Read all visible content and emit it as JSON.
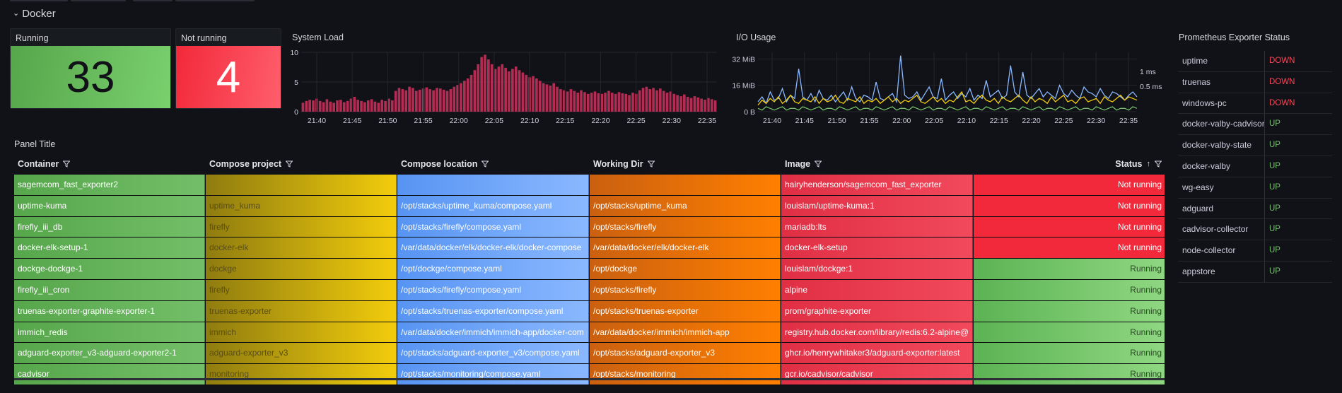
{
  "section": {
    "title": "Docker"
  },
  "running": {
    "title": "Running",
    "value": "33"
  },
  "not_running": {
    "title": "Not running",
    "value": "4"
  },
  "system_load": {
    "title": "System Load"
  },
  "io_usage": {
    "title": "I/O Usage"
  },
  "exporter_status": {
    "title": "Prometheus Exporter Status",
    "rows": [
      {
        "name": "uptime",
        "status": "DOWN"
      },
      {
        "name": "truenas",
        "status": "DOWN"
      },
      {
        "name": "windows-pc",
        "status": "DOWN"
      },
      {
        "name": "docker-valby-cadvisor",
        "status": "UP"
      },
      {
        "name": "docker-valby-state",
        "status": "UP"
      },
      {
        "name": "docker-valby",
        "status": "UP"
      },
      {
        "name": "wg-easy",
        "status": "UP"
      },
      {
        "name": "adguard",
        "status": "UP"
      },
      {
        "name": "cadvisor-collector",
        "status": "UP"
      },
      {
        "name": "node-collector",
        "status": "UP"
      },
      {
        "name": "appstore",
        "status": "UP"
      }
    ]
  },
  "table": {
    "title": "Panel Title",
    "columns": [
      "Container",
      "Compose project",
      "Compose location",
      "Working Dir",
      "Image",
      "Status"
    ],
    "rows": [
      [
        "sagemcom_fast_exporter2",
        "",
        "",
        "",
        "hairyhenderson/sagemcom_fast_exporter",
        "Not running"
      ],
      [
        "uptime-kuma",
        "uptime_kuma",
        "/opt/stacks/uptime_kuma/compose.yaml",
        "/opt/stacks/uptime_kuma",
        "louislam/uptime-kuma:1",
        "Not running"
      ],
      [
        "firefly_iii_db",
        "firefly",
        "/opt/stacks/firefly/compose.yaml",
        "/opt/stacks/firefly",
        "mariadb:lts",
        "Not running"
      ],
      [
        "docker-elk-setup-1",
        "docker-elk",
        "/var/data/docker/elk/docker-elk/docker-compose",
        "/var/data/docker/elk/docker-elk",
        "docker-elk-setup",
        "Not running"
      ],
      [
        "dockge-dockge-1",
        "dockge",
        "/opt/dockge/compose.yaml",
        "/opt/dockge",
        "louislam/dockge:1",
        "Running"
      ],
      [
        "firefly_iii_cron",
        "firefly",
        "/opt/stacks/firefly/compose.yaml",
        "/opt/stacks/firefly",
        "alpine",
        "Running"
      ],
      [
        "truenas-exporter-graphite-exporter-1",
        "truenas-exporter",
        "/opt/stacks/truenas-exporter/compose.yaml",
        "/opt/stacks/truenas-exporter",
        "prom/graphite-exporter",
        "Running"
      ],
      [
        "immich_redis",
        "immich",
        "/var/data/docker/immich/immich-app/docker-com",
        "/var/data/docker/immich/immich-app",
        "registry.hub.docker.com/library/redis:6.2-alpine@",
        "Running"
      ],
      [
        "adguard-exporter_v3-adguard-exporter2-1",
        "adguard-exporter_v3",
        "/opt/stacks/adguard-exporter_v3/compose.yaml",
        "/opt/stacks/adguard-exporter_v3",
        "ghcr.io/henrywhitaker3/adguard-exporter:latest",
        "Running"
      ],
      [
        "cadvisor",
        "monitoring",
        "/opt/stacks/monitoring/compose.yaml",
        "/opt/stacks/monitoring",
        "gcr.io/cadvisor/cadvisor",
        "Running"
      ]
    ]
  },
  "colors": {
    "up": "#73bf69",
    "down": "#f2495c",
    "bars": "#c4305a"
  },
  "chart_data": [
    {
      "type": "bar",
      "title": "System Load",
      "ylim": [
        0,
        10
      ],
      "yticks": [
        "0",
        "5",
        "10"
      ],
      "xticks": [
        "21:40",
        "21:45",
        "21:50",
        "21:55",
        "22:00",
        "22:05",
        "22:10",
        "22:15",
        "22:20",
        "22:25",
        "22:30",
        "22:35"
      ],
      "values": [
        1.5,
        1.8,
        2.0,
        1.9,
        2.2,
        1.8,
        1.6,
        2.1,
        1.7,
        1.5,
        1.9,
        2.0,
        1.6,
        1.8,
        2.2,
        2.5,
        2.0,
        1.8,
        1.6,
        1.9,
        2.1,
        1.7,
        1.5,
        2.0,
        1.8,
        2.2,
        1.9,
        3.5,
        4.0,
        3.8,
        3.6,
        4.2,
        4.0,
        3.5,
        3.7,
        3.9,
        4.1,
        3.8,
        3.6,
        4.0,
        3.9,
        3.7,
        3.5,
        3.8,
        4.2,
        4.5,
        4.8,
        5.2,
        5.6,
        6.2,
        7.0,
        8.0,
        9.2,
        9.6,
        8.8,
        8.0,
        7.2,
        7.6,
        8.0,
        7.4,
        6.8,
        7.2,
        7.6,
        7.0,
        6.6,
        6.2,
        5.8,
        6.0,
        5.6,
        5.2,
        4.8,
        4.6,
        4.4,
        4.8,
        4.2,
        3.8,
        3.6,
        3.4,
        3.8,
        3.5,
        3.2,
        3.6,
        3.3,
        3.0,
        3.2,
        3.4,
        3.1,
        3.0,
        3.2,
        3.5,
        3.2,
        3.0,
        3.3,
        3.1,
        3.0,
        2.8,
        3.2,
        3.0,
        3.6,
        4.0,
        4.2,
        3.8,
        4.0,
        3.6,
        3.9,
        3.5,
        3.2,
        3.4,
        3.0,
        2.8,
        2.6,
        2.9,
        2.5,
        2.3,
        2.6,
        2.4,
        2.2,
        2.0,
        2.3,
        2.1,
        1.9
      ]
    },
    {
      "type": "line",
      "title": "I/O Usage",
      "yticks_left": [
        "0 B",
        "16 MiB",
        "32 MiB"
      ],
      "yticks_right": [
        "0.5 ms",
        "1 ms"
      ],
      "ylim": [
        0,
        36
      ],
      "xticks": [
        "21:40",
        "21:45",
        "21:50",
        "21:55",
        "22:00",
        "22:05",
        "22:10",
        "22:15",
        "22:20",
        "22:25",
        "22:30",
        "22:35"
      ],
      "series": [
        {
          "color": "#8ab8ff",
          "values": [
            6,
            9,
            5,
            12,
            7,
            8,
            14,
            6,
            10,
            8,
            26,
            9,
            7,
            11,
            6,
            13,
            8,
            7,
            10,
            6,
            9,
            12,
            7,
            15,
            8,
            6,
            10,
            9,
            7,
            18,
            8,
            7,
            9,
            11,
            6,
            34,
            10,
            8,
            9,
            12,
            7,
            11,
            15,
            9,
            8,
            20,
            7,
            10,
            12,
            8,
            11,
            9,
            14,
            7,
            10,
            8,
            19,
            9,
            11,
            13,
            8,
            10,
            28,
            12,
            9,
            24,
            10,
            8,
            11,
            14,
            9,
            12,
            10,
            8,
            16,
            11,
            9,
            13,
            10,
            8,
            15,
            12,
            11,
            9,
            14,
            10,
            8,
            12,
            11,
            9,
            7,
            10,
            12,
            9
          ]
        },
        {
          "color": "#f2cc0c",
          "values": [
            4,
            7,
            5,
            8,
            6,
            9,
            5,
            7,
            10,
            6,
            5,
            8,
            7,
            6,
            9,
            5,
            8,
            6,
            7,
            10,
            6,
            5,
            8,
            7,
            6,
            9,
            5,
            7,
            6,
            8,
            5,
            7,
            9,
            6,
            8,
            5,
            7,
            6,
            8,
            10,
            6,
            5,
            7,
            9,
            6,
            8,
            5,
            7,
            6,
            9,
            12,
            6,
            7,
            5,
            8,
            10,
            7,
            6,
            8,
            5,
            9,
            7,
            6,
            8,
            10,
            7,
            5,
            9,
            6,
            8,
            7,
            5,
            9,
            6,
            8,
            10,
            6,
            7,
            5,
            8,
            9,
            6,
            7,
            8,
            5,
            9,
            7,
            6,
            8,
            10,
            7,
            9,
            8,
            7
          ]
        },
        {
          "color": "#73bf69",
          "values": [
            2,
            1,
            3,
            2,
            1,
            2,
            3,
            1,
            2,
            2,
            1,
            3,
            2,
            1,
            2,
            3,
            1,
            2,
            2,
            1,
            3,
            2,
            1,
            2,
            3,
            1,
            2,
            2,
            1,
            3,
            2,
            1,
            2,
            3,
            1,
            2,
            2,
            1,
            3,
            2,
            1,
            2,
            3,
            1,
            2,
            2,
            1,
            3,
            2,
            1,
            2,
            3,
            1,
            2,
            2,
            1,
            3,
            2,
            1,
            2,
            3,
            1,
            2,
            2,
            1,
            3,
            2,
            1,
            2,
            3,
            1,
            2,
            2,
            1,
            3,
            2,
            1,
            2,
            3,
            1,
            2,
            2,
            1,
            3,
            2,
            1,
            2,
            3,
            1,
            2,
            2,
            1,
            3,
            2
          ]
        }
      ]
    }
  ]
}
